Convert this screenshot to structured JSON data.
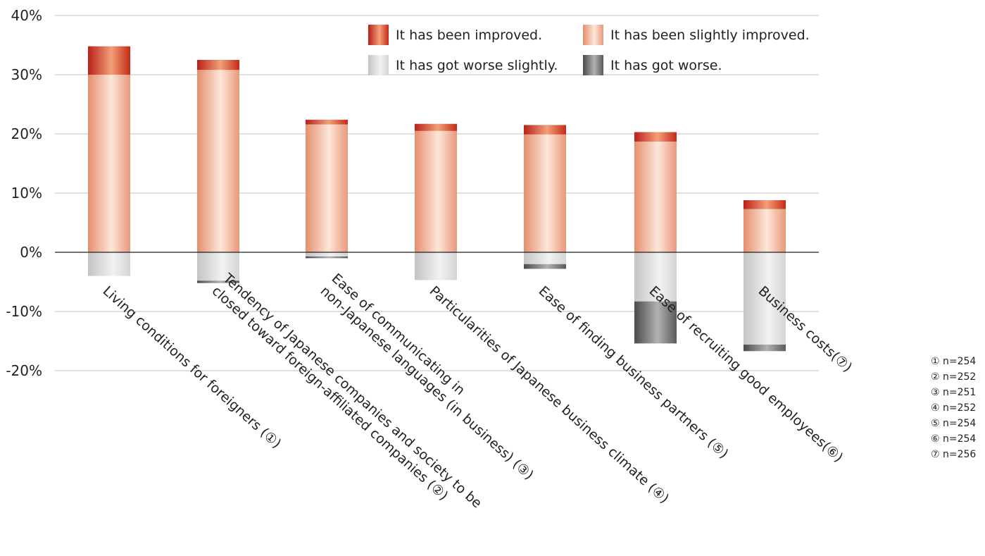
{
  "chart_data": {
    "type": "bar",
    "stacked": true,
    "yticks": [
      "40%",
      "30%",
      "20%",
      "10%",
      "0%",
      "-10%",
      "-20%"
    ],
    "ylim": [
      -20,
      40
    ],
    "grid": true,
    "legend_position": "top-right",
    "categories": [
      [
        "Living conditions for foreigners (①)"
      ],
      [
        "Tendency of Japanese companies and society to be",
        "closed toward foreign-affiliated companies (②)"
      ],
      [
        "Ease of communicating in",
        "non-Japanese languages (in business) (③)"
      ],
      [
        "Particularities of Japanese business climate (④)"
      ],
      [
        "Ease of finding business partners (⑤)"
      ],
      [
        "Ease of recruiting good employees(⑥)"
      ],
      [
        "Business costs(⑦)"
      ]
    ],
    "series": [
      {
        "name": "It has been improved.",
        "color": "#c8311a",
        "values": [
          4.8,
          1.7,
          0.8,
          1.2,
          1.6,
          1.6,
          1.5
        ]
      },
      {
        "name": "It has been slightly improved.",
        "color": "#f2b59a",
        "values": [
          30.0,
          30.8,
          21.6,
          20.5,
          19.9,
          18.7,
          7.3
        ]
      },
      {
        "name": "It has got worse slightly.",
        "color": "#d9d9d9",
        "values": [
          -4.0,
          -4.8,
          -0.7,
          -4.7,
          -2.0,
          -8.3,
          -15.6
        ]
      },
      {
        "name": "It has got worse.",
        "color": "#6e6e6e",
        "values": [
          0,
          -0.4,
          -0.3,
          0,
          -0.8,
          -7.1,
          -1.1
        ]
      }
    ],
    "notes": [
      "① n=254",
      "② n=252",
      "③ n=251",
      "④ n=252",
      "⑤ n=254",
      "⑥ n=254",
      "⑦ n=256"
    ]
  }
}
